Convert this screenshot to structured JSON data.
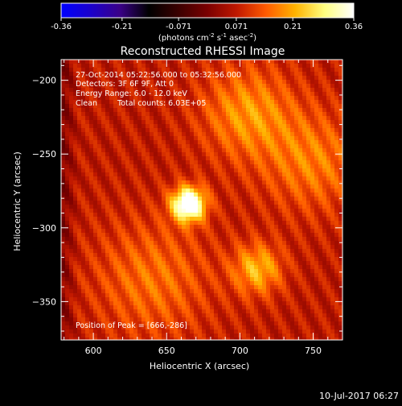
{
  "chart_data": {
    "type": "heatmap",
    "title": "Reconstructed RHESSI Image",
    "xlabel": "Heliocentric X (arcsec)",
    "ylabel": "Heliocentric Y (arcsec)",
    "xlim": [
      578,
      770
    ],
    "ylim": [
      -376,
      -186
    ],
    "x_ticks": [
      600,
      650,
      700,
      750
    ],
    "y_ticks": [
      -200,
      -250,
      -300,
      -350
    ],
    "colorbar": {
      "range": [
        -0.36,
        0.36
      ],
      "tick_values": [
        -0.36,
        -0.21,
        -0.071,
        0.071,
        0.21,
        0.36
      ],
      "tick_labels": [
        "-0.36",
        "-0.21",
        "-0.071",
        "0.071",
        "0.21",
        "0.36"
      ],
      "unit_label": "(photons cm",
      "unit_exp1": "-2",
      "unit_mid": " s",
      "unit_exp2": "-1",
      "unit_mid2": " asec",
      "unit_exp3": "-2",
      "unit_end": ")",
      "colormap": [
        "#0000ff",
        "#1a00cc",
        "#3a0088",
        "#000000",
        "#3a0000",
        "#7a0000",
        "#c01800",
        "#ff5a00",
        "#ffb300",
        "#ffff80",
        "#ffffff"
      ]
    },
    "annotations": {
      "time": "27-Oct-2014 05:22:56.000 to 05:32:56.000",
      "detectors": "Detectors: 3F 6F 9F, Att 0",
      "energy": "Energy Range: 6.0 - 12.0 keV",
      "method": "Clean",
      "counts": "Total counts: 6.03E+05",
      "peak": "Position of Peak = [666,-286]"
    },
    "sources": [
      {
        "x": 665,
        "y": -284,
        "amplitude": 0.36,
        "sigma": 8
      },
      {
        "x": 712,
        "y": -328,
        "amplitude": 0.15,
        "sigma": 12
      },
      {
        "x": 705,
        "y": -222,
        "amplitude": 0.12,
        "sigma": 22
      },
      {
        "x": 750,
        "y": -255,
        "amplitude": 0.1,
        "sigma": 24
      },
      {
        "x": 640,
        "y": -335,
        "amplitude": 0.09,
        "sigma": 28
      }
    ],
    "background": 0.07,
    "stripe_amplitude": 0.035
  },
  "footer": {
    "date": "10-Jul-2017 06:27"
  }
}
